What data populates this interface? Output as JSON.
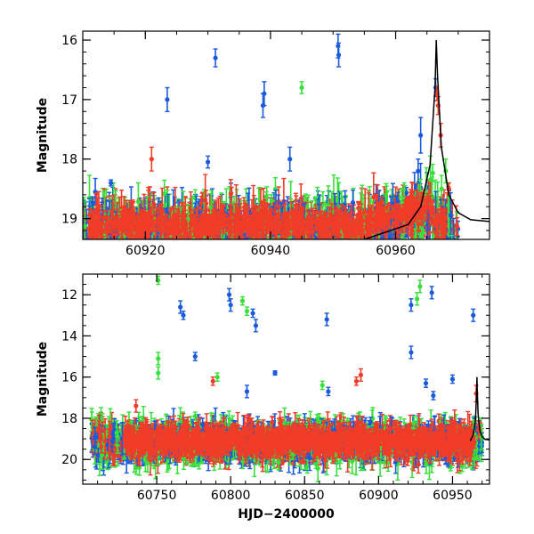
{
  "chart_data": [
    {
      "type": "scatter",
      "panel": "top",
      "title": "",
      "xlabel": "",
      "ylabel": "Magnitude",
      "xlim": [
        60910,
        60975
      ],
      "ylim": [
        19.35,
        15.85
      ],
      "y_inverted": true,
      "x_ticks": [
        60920,
        60940,
        60960
      ],
      "y_ticks": [
        16,
        17,
        18,
        19
      ],
      "x_tick_labels": [
        "60920",
        "60940",
        "60960"
      ],
      "y_tick_labels": [
        "16",
        "17",
        "18",
        "19"
      ],
      "series": [
        {
          "name": "blue",
          "color": "#1a5adc"
        },
        {
          "name": "green",
          "color": "#39e03c"
        },
        {
          "name": "red",
          "color": "#f03c28"
        }
      ],
      "outliers": [
        {
          "x": 60923.5,
          "y": 17.0,
          "err": 0.2,
          "series": "blue"
        },
        {
          "x": 60931.2,
          "y": 16.3,
          "err": 0.15,
          "series": "blue"
        },
        {
          "x": 60938.8,
          "y": 17.1,
          "err": 0.2,
          "series": "blue"
        },
        {
          "x": 60939.0,
          "y": 16.9,
          "err": 0.2,
          "series": "blue"
        },
        {
          "x": 60950.8,
          "y": 16.1,
          "err": 0.2,
          "series": "blue"
        },
        {
          "x": 60950.9,
          "y": 16.25,
          "err": 0.2,
          "series": "blue"
        },
        {
          "x": 60945.0,
          "y": 16.8,
          "err": 0.1,
          "series": "green"
        },
        {
          "x": 60943.1,
          "y": 18.0,
          "err": 0.2,
          "series": "blue"
        },
        {
          "x": 60930.0,
          "y": 18.05,
          "err": 0.1,
          "series": "blue"
        },
        {
          "x": 60914.5,
          "y": 18.4,
          "err": 0.05,
          "series": "blue"
        },
        {
          "x": 60921.0,
          "y": 18.0,
          "err": 0.2,
          "series": "red"
        },
        {
          "x": 60963.6,
          "y": 18.2,
          "err": 0.2,
          "series": "blue"
        },
        {
          "x": 60964.0,
          "y": 17.6,
          "err": 0.3,
          "series": "blue"
        },
        {
          "x": 60966.4,
          "y": 16.8,
          "err": 0.15,
          "series": "blue"
        },
        {
          "x": 60966.6,
          "y": 16.9,
          "err": 0.12,
          "series": "red"
        },
        {
          "x": 60966.8,
          "y": 17.1,
          "err": 0.15,
          "series": "red"
        },
        {
          "x": 60967.2,
          "y": 17.6,
          "err": 0.2,
          "series": "red"
        },
        {
          "x": 60968.0,
          "y": 18.2,
          "err": 0.2,
          "series": "green"
        },
        {
          "x": 60968.5,
          "y": 18.5,
          "err": 0.1,
          "series": "red"
        }
      ],
      "model_curve": {
        "x": [
          60910,
          60940,
          60955,
          60962,
          60964,
          60965.5,
          60966.3,
          60966.5,
          60966.7,
          60967.3,
          60968.5,
          60970,
          60972,
          60975
        ],
        "y": [
          19.5,
          19.45,
          19.35,
          19.1,
          18.8,
          18.1,
          16.8,
          16.0,
          16.6,
          17.8,
          18.6,
          18.9,
          19.02,
          19.05
        ]
      }
    },
    {
      "type": "scatter",
      "panel": "bottom",
      "title": "",
      "xlabel": "HJD−2400000",
      "ylabel": "Magnitude",
      "xlim": [
        60700,
        60975
      ],
      "ylim": [
        21.2,
        11.0
      ],
      "y_inverted": true,
      "x_ticks": [
        60750,
        60800,
        60850,
        60900,
        60950
      ],
      "y_ticks": [
        12,
        14,
        16,
        18,
        20
      ],
      "x_tick_labels": [
        "60750",
        "60800",
        "60850",
        "60900",
        "60950"
      ],
      "y_tick_labels": [
        "12",
        "14",
        "16",
        "18",
        "20"
      ],
      "series": [
        {
          "name": "blue",
          "color": "#1a5adc"
        },
        {
          "name": "green",
          "color": "#39e03c"
        },
        {
          "name": "red",
          "color": "#f03c28"
        }
      ],
      "outliers": [
        {
          "x": 60751,
          "y": 11.3,
          "err": 0.2,
          "series": "green"
        },
        {
          "x": 60751,
          "y": 15.1,
          "err": 0.3,
          "series": "green"
        },
        {
          "x": 60751,
          "y": 15.8,
          "err": 0.3,
          "series": "green"
        },
        {
          "x": 60766,
          "y": 12.6,
          "err": 0.3,
          "series": "blue"
        },
        {
          "x": 60768,
          "y": 13.0,
          "err": 0.2,
          "series": "blue"
        },
        {
          "x": 60776,
          "y": 15.0,
          "err": 0.2,
          "series": "blue"
        },
        {
          "x": 60788,
          "y": 16.2,
          "err": 0.2,
          "series": "red"
        },
        {
          "x": 60791,
          "y": 16.0,
          "err": 0.2,
          "series": "green"
        },
        {
          "x": 60799,
          "y": 12.0,
          "err": 0.3,
          "series": "blue"
        },
        {
          "x": 60800,
          "y": 12.5,
          "err": 0.3,
          "series": "blue"
        },
        {
          "x": 60808,
          "y": 12.3,
          "err": 0.2,
          "series": "green"
        },
        {
          "x": 60811,
          "y": 12.8,
          "err": 0.2,
          "series": "green"
        },
        {
          "x": 60815,
          "y": 12.9,
          "err": 0.2,
          "series": "blue"
        },
        {
          "x": 60817,
          "y": 13.5,
          "err": 0.3,
          "series": "blue"
        },
        {
          "x": 60811,
          "y": 16.7,
          "err": 0.3,
          "series": "blue"
        },
        {
          "x": 60830,
          "y": 15.8,
          "err": 0.1,
          "series": "blue"
        },
        {
          "x": 60865,
          "y": 13.2,
          "err": 0.3,
          "series": "blue"
        },
        {
          "x": 60862,
          "y": 16.4,
          "err": 0.2,
          "series": "green"
        },
        {
          "x": 60866,
          "y": 16.7,
          "err": 0.2,
          "series": "blue"
        },
        {
          "x": 60885,
          "y": 16.2,
          "err": 0.2,
          "series": "red"
        },
        {
          "x": 60888,
          "y": 15.9,
          "err": 0.3,
          "series": "red"
        },
        {
          "x": 60922,
          "y": 14.8,
          "err": 0.3,
          "series": "blue"
        },
        {
          "x": 60922,
          "y": 12.5,
          "err": 0.3,
          "series": "blue"
        },
        {
          "x": 60926,
          "y": 12.2,
          "err": 0.3,
          "series": "green"
        },
        {
          "x": 60928,
          "y": 11.6,
          "err": 0.3,
          "series": "green"
        },
        {
          "x": 60936,
          "y": 11.9,
          "err": 0.3,
          "series": "blue"
        },
        {
          "x": 60932,
          "y": 16.3,
          "err": 0.2,
          "series": "blue"
        },
        {
          "x": 60937,
          "y": 16.9,
          "err": 0.2,
          "series": "blue"
        },
        {
          "x": 60950,
          "y": 16.1,
          "err": 0.2,
          "series": "blue"
        },
        {
          "x": 60964,
          "y": 13.0,
          "err": 0.3,
          "series": "blue"
        },
        {
          "x": 60736,
          "y": 17.4,
          "err": 0.3,
          "series": "red"
        },
        {
          "x": 60781,
          "y": 18.3,
          "err": 0.3,
          "series": "blue"
        },
        {
          "x": 60776,
          "y": 17.9,
          "err": 0.2,
          "series": "green"
        },
        {
          "x": 60924,
          "y": 18.2,
          "err": 0.3,
          "series": "green"
        },
        {
          "x": 60966,
          "y": 16.8,
          "err": 0.4,
          "series": "red"
        }
      ],
      "model_curve": {
        "x": [
          60962,
          60964,
          60965.5,
          60966.3,
          60966.5,
          60966.7,
          60967.3,
          60968.5,
          60970,
          60972,
          60975
        ],
        "y": [
          19.1,
          18.8,
          18.1,
          16.8,
          16.0,
          16.6,
          17.8,
          18.6,
          18.9,
          19.02,
          19.05
        ]
      }
    }
  ]
}
